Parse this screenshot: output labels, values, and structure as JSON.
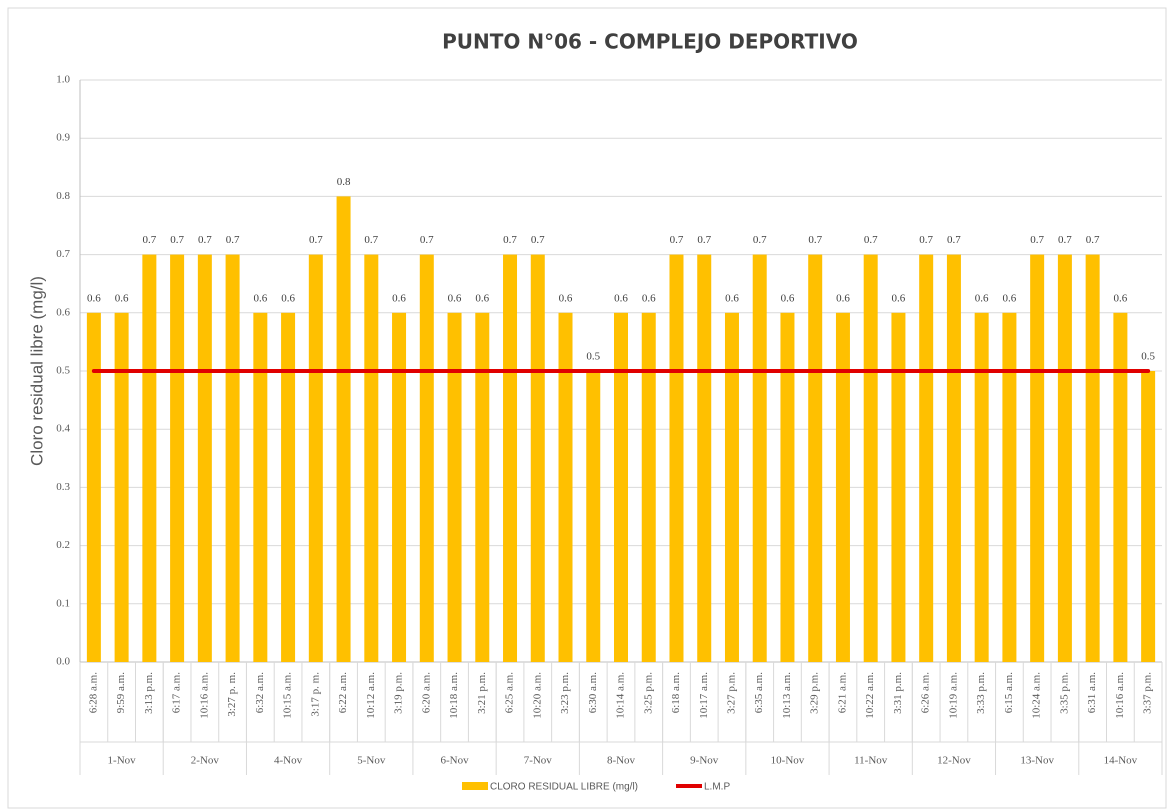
{
  "chart_data": {
    "type": "bar",
    "title": "PUNTO N°06 - COMPLEJO DEPORTIVO",
    "y_label": "Cloro residual libre (mg/l)",
    "groups": [
      "1-Nov",
      "2-Nov",
      "4-Nov",
      "5-Nov",
      "6-Nov",
      "7-Nov",
      "8-Nov",
      "9-Nov",
      "10-Nov",
      "11-Nov",
      "12-Nov",
      "13-Nov",
      "14-Nov"
    ],
    "categories": [
      "6:28 a.m.",
      "9:59 a.m.",
      "3:13 p.m.",
      "6:17 a.m.",
      "10:16 a.m.",
      "3:27 p. m.",
      "6:32 a.m.",
      "10:15 a.m.",
      "3:17 p. m.",
      "6:22 a.m.",
      "10:12 a.m.",
      "3:19 p.m.",
      "6:20 a.m.",
      "10:18 a.m.",
      "3:21 p.m.",
      "6:25 a.m.",
      "10:20 a.m.",
      "3:23 p.m.",
      "6:30 a.m.",
      "10:14 a.m.",
      "3:25 p.m.",
      "6:18 a.m.",
      "10:17 a.m.",
      "3:27 p.m.",
      "6:35 a.m.",
      "10:13 a.m.",
      "3:29 p.m.",
      "6:21 a.m.",
      "10:22 a.m.",
      "3:31 p.m.",
      "6:26 a.m.",
      "10:19 a.m.",
      "3:33 p.m.",
      "6:15 a.m.",
      "10:24 a.m.",
      "3:35 p.m.",
      "6:31 a.m.",
      "10:16 a.m.",
      "3:37 p.m."
    ],
    "series": [
      {
        "name": "CLORO RESIDUAL LIBRE (mg/l)",
        "type": "bar",
        "color": "#ffc000",
        "values": [
          0.6,
          0.6,
          0.7,
          0.7,
          0.7,
          0.7,
          0.6,
          0.6,
          0.7,
          0.8,
          0.7,
          0.6,
          0.7,
          0.6,
          0.6,
          0.7,
          0.7,
          0.6,
          0.5,
          0.6,
          0.6,
          0.7,
          0.7,
          0.6,
          0.7,
          0.6,
          0.7,
          0.6,
          0.7,
          0.6,
          0.7,
          0.7,
          0.6,
          0.6,
          0.7,
          0.7,
          0.7,
          0.6,
          0.5
        ]
      },
      {
        "name": "L.M.P",
        "type": "line",
        "color": "#e00000",
        "values": [
          0.5,
          0.5,
          0.5,
          0.5,
          0.5,
          0.5,
          0.5,
          0.5,
          0.5,
          0.5,
          0.5,
          0.5,
          0.5,
          0.5,
          0.5,
          0.5,
          0.5,
          0.5,
          0.5,
          0.5,
          0.5,
          0.5,
          0.5,
          0.5,
          0.5,
          0.5,
          0.5,
          0.5,
          0.5,
          0.5,
          0.5,
          0.5,
          0.5,
          0.5,
          0.5,
          0.5,
          0.5,
          0.5,
          0.5
        ]
      }
    ],
    "ylim": [
      0,
      1
    ],
    "yticks": [
      {
        "value": 0,
        "label": "0.0"
      },
      0.1,
      0.2,
      0.3,
      0.4,
      0.5,
      0.6,
      0.7,
      0.8,
      0.9,
      {
        "value": 1,
        "label": "1.0"
      }
    ],
    "grid": true,
    "legend": "bottom"
  }
}
